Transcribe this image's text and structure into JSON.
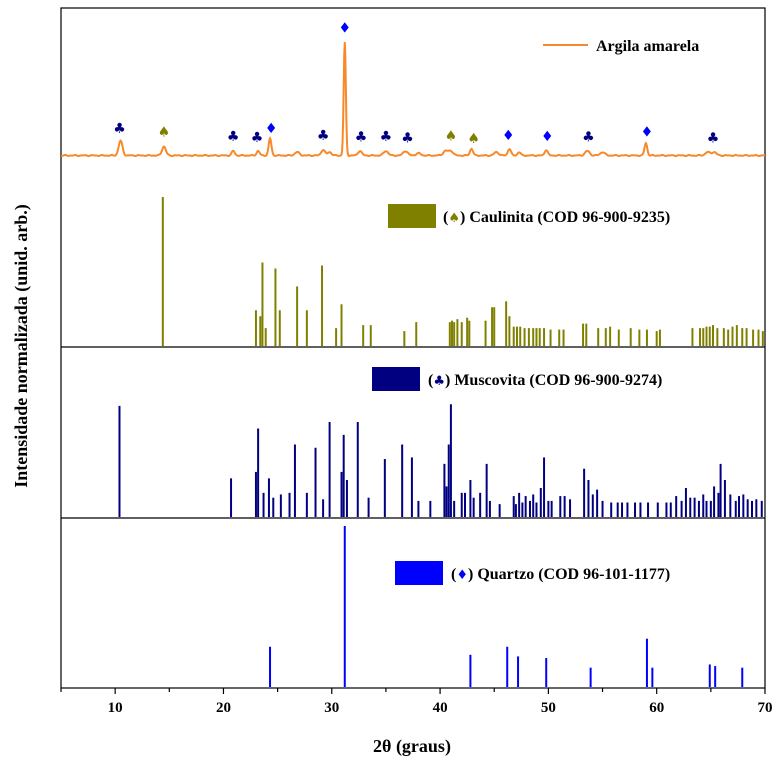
{
  "chart_data": {
    "type": "line",
    "xlabel": "2θ (graus)",
    "ylabel": "Intensidade normalizada (unid. arb.)",
    "xlim": [
      5,
      70
    ],
    "xticks": [
      10,
      20,
      30,
      40,
      50,
      60,
      70
    ],
    "xtick_labels": [
      "10",
      "20",
      "30",
      "40",
      "50",
      "60",
      "70"
    ],
    "grid": false,
    "colors": {
      "sample": "#F7892A",
      "caulinita": "#808000",
      "muscovita": "#000080",
      "quartzo": "#0000FF"
    },
    "sample": {
      "legend": "Argila amarela",
      "legend_placement": "top-right",
      "peaks": [
        {
          "x": 10.5,
          "h": 0.13,
          "w": 0.25
        },
        {
          "x": 14.5,
          "h": 0.08,
          "w": 0.25
        },
        {
          "x": 20.9,
          "h": 0.04,
          "w": 0.2
        },
        {
          "x": 23.2,
          "h": 0.04,
          "w": 0.2
        },
        {
          "x": 24.3,
          "h": 0.15,
          "w": 0.18
        },
        {
          "x": 26.8,
          "h": 0.03,
          "w": 0.3
        },
        {
          "x": 29.2,
          "h": 0.05,
          "w": 0.25
        },
        {
          "x": 29.8,
          "h": 0.03,
          "w": 0.25
        },
        {
          "x": 31.2,
          "h": 1.0,
          "w": 0.14
        },
        {
          "x": 32.6,
          "h": 0.04,
          "w": 0.25
        },
        {
          "x": 35.0,
          "h": 0.04,
          "w": 0.3
        },
        {
          "x": 36.8,
          "h": 0.04,
          "w": 0.3
        },
        {
          "x": 38.0,
          "h": 0.02,
          "w": 0.3
        },
        {
          "x": 40.5,
          "h": 0.04,
          "w": 0.3
        },
        {
          "x": 41.0,
          "h": 0.04,
          "w": 0.3
        },
        {
          "x": 42.9,
          "h": 0.06,
          "w": 0.2
        },
        {
          "x": 45.2,
          "h": 0.03,
          "w": 0.3
        },
        {
          "x": 46.4,
          "h": 0.06,
          "w": 0.2
        },
        {
          "x": 47.3,
          "h": 0.03,
          "w": 0.2
        },
        {
          "x": 49.8,
          "h": 0.05,
          "w": 0.2
        },
        {
          "x": 53.6,
          "h": 0.04,
          "w": 0.3
        },
        {
          "x": 55.0,
          "h": 0.03,
          "w": 0.3
        },
        {
          "x": 59.0,
          "h": 0.11,
          "w": 0.18
        },
        {
          "x": 64.7,
          "h": 0.03,
          "w": 0.3
        },
        {
          "x": 65.3,
          "h": 0.03,
          "w": 0.3
        }
      ],
      "markers": [
        {
          "x": 10.4,
          "symbol": "♣",
          "phase": "muscovita"
        },
        {
          "x": 14.5,
          "symbol": "♠",
          "phase": "caulinita"
        },
        {
          "x": 20.9,
          "symbol": "♣",
          "phase": "muscovita"
        },
        {
          "x": 23.1,
          "symbol": "♣",
          "phase": "muscovita"
        },
        {
          "x": 24.4,
          "symbol": "♦",
          "phase": "quartzo"
        },
        {
          "x": 29.2,
          "symbol": "♣",
          "phase": "muscovita"
        },
        {
          "x": 31.2,
          "symbol": "♦",
          "phase": "quartzo"
        },
        {
          "x": 32.7,
          "symbol": "♣",
          "phase": "muscovita"
        },
        {
          "x": 35.0,
          "symbol": "♣",
          "phase": "muscovita"
        },
        {
          "x": 37.0,
          "symbol": "♣",
          "phase": "muscovita"
        },
        {
          "x": 41.0,
          "symbol": "♠",
          "phase": "caulinita"
        },
        {
          "x": 43.1,
          "symbol": "♠",
          "phase": "caulinita"
        },
        {
          "x": 46.3,
          "symbol": "♦",
          "phase": "quartzo"
        },
        {
          "x": 49.9,
          "symbol": "♦",
          "phase": "quartzo"
        },
        {
          "x": 53.7,
          "symbol": "♣",
          "phase": "muscovita"
        },
        {
          "x": 59.1,
          "symbol": "♦",
          "phase": "quartzo"
        },
        {
          "x": 65.2,
          "symbol": "♣",
          "phase": "muscovita"
        }
      ]
    },
    "references": [
      {
        "name": "Caulinita",
        "legend_prefix": "(",
        "legend_symbol": "♠",
        "legend_suffix": ") Caulinita (COD 96-900-9235)",
        "legend_placement": "top-right",
        "lines": [
          [
            14.4,
            1.0
          ],
          [
            23.0,
            0.24
          ],
          [
            23.4,
            0.2
          ],
          [
            23.6,
            0.56
          ],
          [
            23.9,
            0.12
          ],
          [
            24.8,
            0.52
          ],
          [
            25.2,
            0.24
          ],
          [
            26.8,
            0.4
          ],
          [
            27.7,
            0.24
          ],
          [
            29.1,
            0.54
          ],
          [
            30.4,
            0.12
          ],
          [
            30.9,
            0.28
          ],
          [
            32.9,
            0.14
          ],
          [
            33.6,
            0.14
          ],
          [
            36.7,
            0.1
          ],
          [
            37.8,
            0.16
          ],
          [
            40.9,
            0.16
          ],
          [
            41.1,
            0.17
          ],
          [
            41.3,
            0.16
          ],
          [
            41.6,
            0.18
          ],
          [
            42.0,
            0.16
          ],
          [
            42.5,
            0.19
          ],
          [
            42.7,
            0.17
          ],
          [
            44.2,
            0.17
          ],
          [
            44.8,
            0.26
          ],
          [
            45.0,
            0.26
          ],
          [
            46.1,
            0.3
          ],
          [
            46.4,
            0.2
          ],
          [
            46.8,
            0.13
          ],
          [
            47.1,
            0.13
          ],
          [
            47.4,
            0.13
          ],
          [
            47.8,
            0.12
          ],
          [
            48.2,
            0.12
          ],
          [
            48.6,
            0.12
          ],
          [
            48.9,
            0.12
          ],
          [
            49.2,
            0.12
          ],
          [
            49.6,
            0.12
          ],
          [
            50.2,
            0.11
          ],
          [
            51.0,
            0.11
          ],
          [
            51.4,
            0.11
          ],
          [
            53.2,
            0.15
          ],
          [
            53.5,
            0.15
          ],
          [
            54.6,
            0.12
          ],
          [
            55.3,
            0.12
          ],
          [
            55.7,
            0.13
          ],
          [
            56.5,
            0.11
          ],
          [
            57.6,
            0.12
          ],
          [
            58.4,
            0.11
          ],
          [
            59.1,
            0.11
          ],
          [
            60.0,
            0.1
          ],
          [
            60.3,
            0.11
          ],
          [
            63.3,
            0.12
          ],
          [
            64.0,
            0.12
          ],
          [
            64.3,
            0.12
          ],
          [
            64.6,
            0.13
          ],
          [
            64.9,
            0.13
          ],
          [
            65.2,
            0.14
          ],
          [
            65.6,
            0.12
          ],
          [
            66.2,
            0.12
          ],
          [
            66.6,
            0.11
          ],
          [
            67.0,
            0.13
          ],
          [
            67.4,
            0.14
          ],
          [
            67.9,
            0.12
          ],
          [
            68.3,
            0.12
          ],
          [
            68.9,
            0.11
          ],
          [
            69.4,
            0.11
          ],
          [
            69.8,
            0.1
          ]
        ]
      },
      {
        "name": "Muscovita",
        "legend_prefix": "(",
        "legend_symbol": "♣",
        "legend_suffix": ") Muscovita (COD 96-900-9274)",
        "legend_placement": "top-right",
        "lines": [
          [
            10.4,
            0.69
          ],
          [
            20.7,
            0.24
          ],
          [
            23.0,
            0.28
          ],
          [
            23.2,
            0.55
          ],
          [
            23.7,
            0.15
          ],
          [
            24.2,
            0.24
          ],
          [
            24.6,
            0.12
          ],
          [
            25.3,
            0.14
          ],
          [
            26.1,
            0.15
          ],
          [
            26.6,
            0.45
          ],
          [
            27.7,
            0.15
          ],
          [
            28.5,
            0.43
          ],
          [
            29.2,
            0.11
          ],
          [
            29.8,
            0.59
          ],
          [
            30.9,
            0.28
          ],
          [
            31.1,
            0.51
          ],
          [
            31.4,
            0.23
          ],
          [
            32.4,
            0.59
          ],
          [
            33.4,
            0.12
          ],
          [
            34.9,
            0.36
          ],
          [
            36.5,
            0.45
          ],
          [
            37.4,
            0.37
          ],
          [
            38.0,
            0.1
          ],
          [
            39.1,
            0.1
          ],
          [
            40.4,
            0.33
          ],
          [
            40.6,
            0.19
          ],
          [
            40.8,
            0.45
          ],
          [
            41.0,
            0.7
          ],
          [
            41.3,
            0.1
          ],
          [
            42.0,
            0.15
          ],
          [
            42.3,
            0.15
          ],
          [
            42.8,
            0.23
          ],
          [
            43.1,
            0.12
          ],
          [
            43.7,
            0.15
          ],
          [
            44.3,
            0.33
          ],
          [
            44.6,
            0.1
          ],
          [
            45.5,
            0.08
          ],
          [
            46.8,
            0.13
          ],
          [
            47.0,
            0.08
          ],
          [
            47.3,
            0.15
          ],
          [
            47.6,
            0.09
          ],
          [
            47.9,
            0.13
          ],
          [
            48.3,
            0.1
          ],
          [
            48.6,
            0.14
          ],
          [
            48.9,
            0.09
          ],
          [
            49.3,
            0.18
          ],
          [
            49.6,
            0.37
          ],
          [
            50.0,
            0.1
          ],
          [
            50.3,
            0.1
          ],
          [
            51.1,
            0.13
          ],
          [
            51.5,
            0.13
          ],
          [
            52.0,
            0.11
          ],
          [
            53.3,
            0.3
          ],
          [
            53.7,
            0.23
          ],
          [
            54.1,
            0.14
          ],
          [
            54.5,
            0.17
          ],
          [
            55.0,
            0.1
          ],
          [
            55.8,
            0.09
          ],
          [
            56.4,
            0.09
          ],
          [
            56.8,
            0.09
          ],
          [
            57.3,
            0.09
          ],
          [
            58.0,
            0.09
          ],
          [
            58.5,
            0.09
          ],
          [
            59.2,
            0.09
          ],
          [
            60.1,
            0.09
          ],
          [
            60.9,
            0.09
          ],
          [
            61.3,
            0.09
          ],
          [
            61.8,
            0.13
          ],
          [
            62.3,
            0.1
          ],
          [
            62.7,
            0.18
          ],
          [
            63.1,
            0.12
          ],
          [
            63.5,
            0.12
          ],
          [
            63.9,
            0.1
          ],
          [
            64.3,
            0.14
          ],
          [
            64.6,
            0.1
          ],
          [
            65.0,
            0.1
          ],
          [
            65.3,
            0.19
          ],
          [
            65.7,
            0.15
          ],
          [
            65.9,
            0.33
          ],
          [
            66.3,
            0.23
          ],
          [
            66.8,
            0.14
          ],
          [
            67.3,
            0.1
          ],
          [
            67.6,
            0.13
          ],
          [
            68.0,
            0.14
          ],
          [
            68.4,
            0.11
          ],
          [
            68.8,
            0.1
          ],
          [
            69.2,
            0.11
          ],
          [
            69.7,
            0.1
          ]
        ]
      },
      {
        "name": "Quartzo",
        "legend_prefix": "(",
        "legend_symbol": "♦",
        "legend_suffix": ") Quartzo (COD 96-101-1177)",
        "legend_placement": "top-right",
        "lines": [
          [
            24.3,
            0.25
          ],
          [
            31.2,
            1.0
          ],
          [
            42.8,
            0.2
          ],
          [
            46.2,
            0.25
          ],
          [
            47.2,
            0.19
          ],
          [
            49.8,
            0.18
          ],
          [
            53.9,
            0.12
          ],
          [
            59.1,
            0.3
          ],
          [
            59.6,
            0.12
          ],
          [
            64.9,
            0.14
          ],
          [
            65.4,
            0.13
          ],
          [
            67.9,
            0.12
          ]
        ]
      }
    ]
  }
}
